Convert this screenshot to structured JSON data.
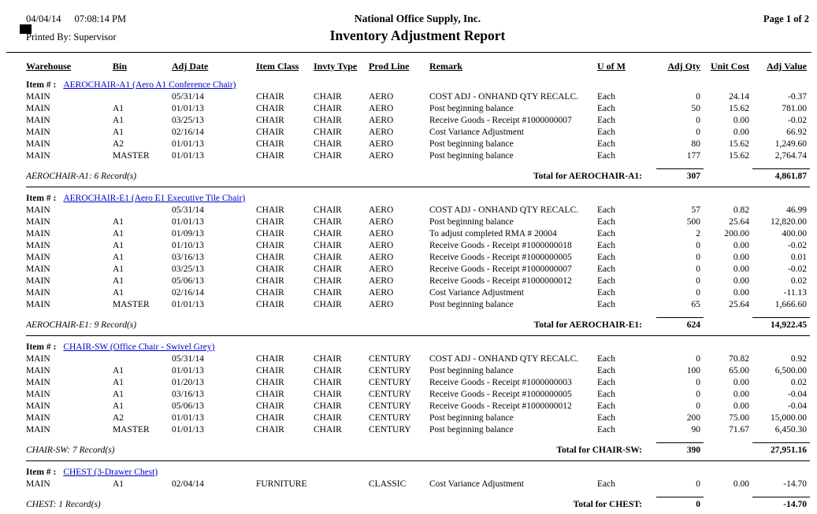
{
  "header": {
    "date": "04/04/14",
    "time": "07:08:14 PM",
    "company": "National Office Supply, Inc.",
    "page": "Page 1 of 2",
    "printed_by": "Printed By: Supervisor",
    "title": "Inventory Adjustment Report"
  },
  "labels": {
    "item_prefix": "Item # :"
  },
  "colors": {
    "link": "#0000cc",
    "text": "#000000",
    "rule": "#000000"
  },
  "columns": [
    "Warehouse",
    "Bin",
    "Adj Date",
    "Item Class",
    "Invty Type",
    "Prod Line",
    "Remark",
    "U of M",
    "Adj Qty",
    "Unit Cost",
    "Adj Value"
  ],
  "groups": [
    {
      "item_name": "AEROCHAIR-A1 (Aero A1 Conference Chair)",
      "rows": [
        [
          "MAIN",
          "",
          "05/31/14",
          "CHAIR",
          "CHAIR",
          "AERO",
          "COST ADJ - ONHAND QTY RECALC.",
          "Each",
          "0",
          "24.14",
          "-0.37"
        ],
        [
          "MAIN",
          "A1",
          "01/01/13",
          "CHAIR",
          "CHAIR",
          "AERO",
          "Post beginning balance",
          "Each",
          "50",
          "15.62",
          "781.00"
        ],
        [
          "MAIN",
          "A1",
          "03/25/13",
          "CHAIR",
          "CHAIR",
          "AERO",
          "Receive Goods - Receipt #1000000007",
          "Each",
          "0",
          "0.00",
          "-0.02"
        ],
        [
          "MAIN",
          "A1",
          "02/16/14",
          "CHAIR",
          "CHAIR",
          "AERO",
          "Cost Variance Adjustment",
          "Each",
          "0",
          "0.00",
          "66.92"
        ],
        [
          "MAIN",
          "A2",
          "01/01/13",
          "CHAIR",
          "CHAIR",
          "AERO",
          "Post beginning balance",
          "Each",
          "80",
          "15.62",
          "1,249.60"
        ],
        [
          "MAIN",
          "MASTER",
          "01/01/13",
          "CHAIR",
          "CHAIR",
          "AERO",
          "Post beginning balance",
          "Each",
          "177",
          "15.62",
          "2,764.74"
        ]
      ],
      "record_count": "AEROCHAIR-A1: 6 Record(s)",
      "total_label": "Total for AEROCHAIR-A1:",
      "total_qty": "307",
      "total_value": "4,861.87"
    },
    {
      "item_name": "AEROCHAIR-E1 (Aero E1 Executive Tile Chair)",
      "rows": [
        [
          "MAIN",
          "",
          "05/31/14",
          "CHAIR",
          "CHAIR",
          "AERO",
          "COST ADJ - ONHAND QTY RECALC.",
          "Each",
          "57",
          "0.82",
          "46.99"
        ],
        [
          "MAIN",
          "A1",
          "01/01/13",
          "CHAIR",
          "CHAIR",
          "AERO",
          "Post beginning balance",
          "Each",
          "500",
          "25.64",
          "12,820.00"
        ],
        [
          "MAIN",
          "A1",
          "01/09/13",
          "CHAIR",
          "CHAIR",
          "AERO",
          "To adjust completed RMA # 20004",
          "Each",
          "2",
          "200.00",
          "400.00"
        ],
        [
          "MAIN",
          "A1",
          "01/10/13",
          "CHAIR",
          "CHAIR",
          "AERO",
          "Receive Goods - Receipt #1000000018",
          "Each",
          "0",
          "0.00",
          "-0.02"
        ],
        [
          "MAIN",
          "A1",
          "03/16/13",
          "CHAIR",
          "CHAIR",
          "AERO",
          "Receive Goods - Receipt #1000000005",
          "Each",
          "0",
          "0.00",
          "0.01"
        ],
        [
          "MAIN",
          "A1",
          "03/25/13",
          "CHAIR",
          "CHAIR",
          "AERO",
          "Receive Goods - Receipt #1000000007",
          "Each",
          "0",
          "0.00",
          "-0.02"
        ],
        [
          "MAIN",
          "A1",
          "05/06/13",
          "CHAIR",
          "CHAIR",
          "AERO",
          "Receive Goods - Receipt #1000000012",
          "Each",
          "0",
          "0.00",
          "0.02"
        ],
        [
          "MAIN",
          "A1",
          "02/16/14",
          "CHAIR",
          "CHAIR",
          "AERO",
          "Cost Variance Adjustment",
          "Each",
          "0",
          "0.00",
          "-11.13"
        ],
        [
          "MAIN",
          "MASTER",
          "01/01/13",
          "CHAIR",
          "CHAIR",
          "AERO",
          "Post beginning balance",
          "Each",
          "65",
          "25.64",
          "1,666.60"
        ]
      ],
      "record_count": "AEROCHAIR-E1: 9 Record(s)",
      "total_label": "Total for AEROCHAIR-E1:",
      "total_qty": "624",
      "total_value": "14,922.45"
    },
    {
      "item_name": "CHAIR-SW (Office Chair - Swivel Grey)",
      "rows": [
        [
          "MAIN",
          "",
          "05/31/14",
          "CHAIR",
          "CHAIR",
          "CENTURY",
          "COST ADJ - ONHAND QTY RECALC.",
          "Each",
          "0",
          "70.82",
          "0.92"
        ],
        [
          "MAIN",
          "A1",
          "01/01/13",
          "CHAIR",
          "CHAIR",
          "CENTURY",
          "Post beginning balance",
          "Each",
          "100",
          "65.00",
          "6,500.00"
        ],
        [
          "MAIN",
          "A1",
          "01/20/13",
          "CHAIR",
          "CHAIR",
          "CENTURY",
          "Receive Goods - Receipt #1000000003",
          "Each",
          "0",
          "0.00",
          "0.02"
        ],
        [
          "MAIN",
          "A1",
          "03/16/13",
          "CHAIR",
          "CHAIR",
          "CENTURY",
          "Receive Goods - Receipt #1000000005",
          "Each",
          "0",
          "0.00",
          "-0.04"
        ],
        [
          "MAIN",
          "A1",
          "05/06/13",
          "CHAIR",
          "CHAIR",
          "CENTURY",
          "Receive Goods - Receipt #1000000012",
          "Each",
          "0",
          "0.00",
          "-0.04"
        ],
        [
          "MAIN",
          "A2",
          "01/01/13",
          "CHAIR",
          "CHAIR",
          "CENTURY",
          "Post beginning balance",
          "Each",
          "200",
          "75.00",
          "15,000.00"
        ],
        [
          "MAIN",
          "MASTER",
          "01/01/13",
          "CHAIR",
          "CHAIR",
          "CENTURY",
          "Post beginning balance",
          "Each",
          "90",
          "71.67",
          "6,450.30"
        ]
      ],
      "record_count": "CHAIR-SW: 7 Record(s)",
      "total_label": "Total for CHAIR-SW:",
      "total_qty": "390",
      "total_value": "27,951.16"
    },
    {
      "item_name": "CHEST (3-Drawer Chest)",
      "rows": [
        [
          "MAIN",
          "A1",
          "02/04/14",
          "FURNITURE",
          "",
          "CLASSIC",
          "Cost Variance Adjustment",
          "Each",
          "0",
          "0.00",
          "-14.70"
        ]
      ],
      "record_count": "CHEST: 1 Record(s)",
      "total_label": "Total for CHEST:",
      "total_qty": "0",
      "total_value": "-14.70"
    }
  ]
}
